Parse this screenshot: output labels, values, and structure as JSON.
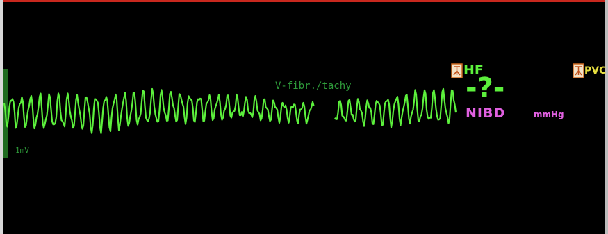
{
  "monitor": {
    "rhythm_label": "V-fibr./tachy",
    "scale_label": "1mV",
    "alarms": [
      "HF",
      "PVC"
    ],
    "value": "-?-",
    "parameter": "NIBD",
    "unit": "mmHg"
  }
}
